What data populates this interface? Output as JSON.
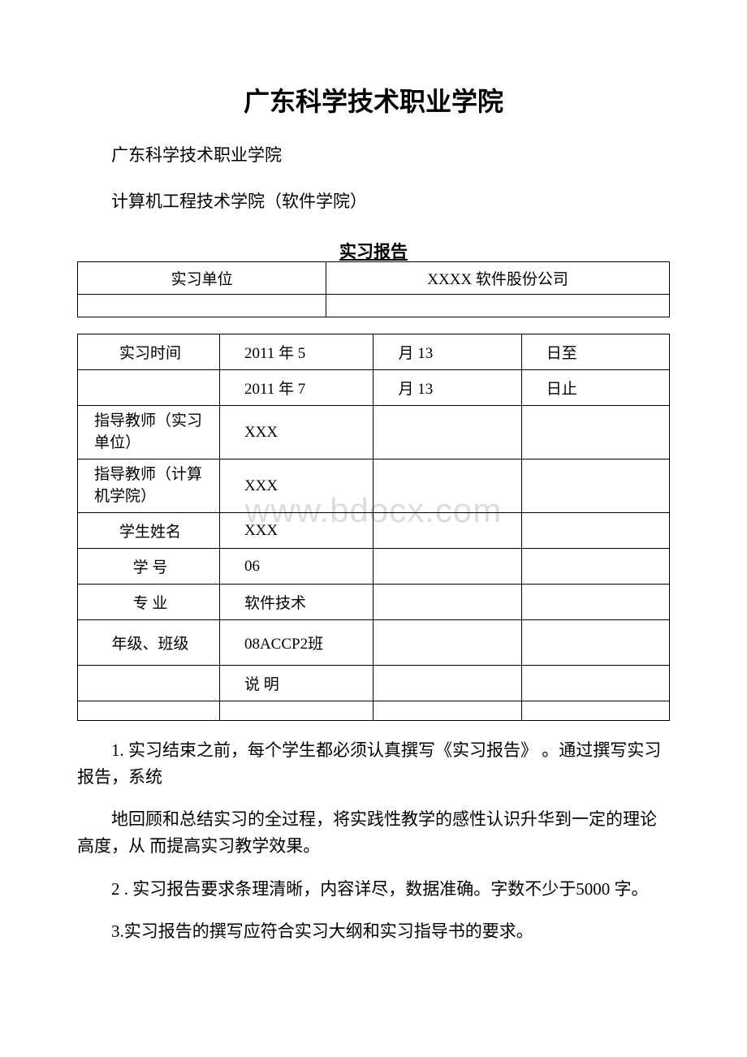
{
  "title": "广东科学技术职业学院",
  "subtitle1": "广东科学技术职业学院",
  "subtitle2": "计算机工程技术学院（软件学院）",
  "reportTitle": "实习报告",
  "watermark": "www.bdocx.com",
  "table1": {
    "rows": [
      {
        "c1": "实习单位",
        "c2": "XXXX 软件股份公司"
      },
      {
        "c1": "",
        "c2": ""
      }
    ]
  },
  "table2": {
    "rows": [
      {
        "c1": "实习时间",
        "c2": "2011 年 5",
        "c3": "月 13",
        "c4": "日至",
        "cls": ""
      },
      {
        "c1": "",
        "c2": "2011 年 7",
        "c3": "月 13",
        "c4": "日止",
        "cls": ""
      },
      {
        "c1": "指导教师（实习单位）",
        "c2": "XXX",
        "c3": "",
        "c4": "",
        "cls": "tall-row",
        "multi": true
      },
      {
        "c1": "指导教师（计算机学院）",
        "c2": "XXX",
        "c3": "",
        "c4": "",
        "cls": "tall-row",
        "multi": true
      },
      {
        "c1": "学生姓名",
        "c2": "XXX",
        "c3": "",
        "c4": "",
        "cls": ""
      },
      {
        "c1": "学 号",
        "c2": "06",
        "c3": "",
        "c4": "",
        "cls": ""
      },
      {
        "c1": "专 业",
        "c2": "软件技术",
        "c3": "",
        "c4": "",
        "cls": ""
      },
      {
        "c1": "年级、班级",
        "c2": "08ACCP2班",
        "c3": "",
        "c4": "",
        "cls": "tall-row"
      },
      {
        "c1": "",
        "c2": "说 明",
        "c3": "",
        "c4": "",
        "cls": ""
      },
      {
        "c1": "",
        "c2": "",
        "c3": "",
        "c4": "",
        "cls": "short-row"
      }
    ]
  },
  "paragraphs": {
    "p1": "1. 实习结束之前，每个学生都必须认真撰写《实习报告》 。通过撰写实习报告，系统",
    "p2": "地回顾和总结实习的全过程，将实践性教学的感性认识升华到一定的理论高度，从 而提高实习教学效果。",
    "p3": "2 . 实习报告要求条理清晰，内容详尽，数据准确。字数不少于5000 字。",
    "p4": "3.实习报告的撰写应符合实习大纲和实习指导书的要求。"
  }
}
